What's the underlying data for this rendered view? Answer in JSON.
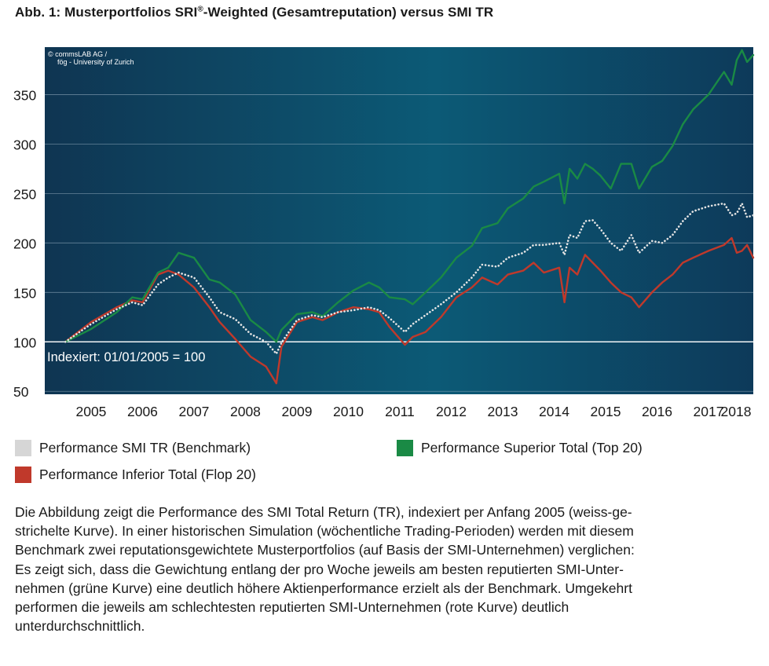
{
  "title": {
    "main": "Abb. 1: Musterportfolios SRI",
    "sup": "®",
    "rest": "-Weighted (Gesamtreputation) versus SMI TR"
  },
  "chart_data": {
    "type": "line",
    "title": "Abb. 1: Musterportfolios SRI®-Weighted (Gesamtreputation) versus SMI TR",
    "ylim": [
      47,
      398
    ],
    "y_ticks": [
      50,
      100,
      150,
      200,
      250,
      300,
      350
    ],
    "x_range": [
      2004.6,
      2018.37
    ],
    "x_ticks": [
      "2005",
      "2006",
      "2007",
      "2008",
      "2009",
      "2010",
      "2011",
      "2012",
      "2013",
      "2014",
      "2015",
      "2016",
      "2017",
      "2018"
    ],
    "grid": "horizontal",
    "source_note": [
      "© commsLAB AG /",
      "fög - University of Zurich"
    ],
    "annotation": "Indexiert: 01/01/2005 = 100",
    "legend_position": "bottom",
    "series": [
      {
        "name": "Performance SMI TR (Benchmark)",
        "color": "#e4e4e4",
        "style": "dotted",
        "x": [
          2005.0,
          2005.5,
          2006.0,
          2006.3,
          2006.5,
          2006.8,
          2007.0,
          2007.2,
          2007.5,
          2007.8,
          2008.0,
          2008.3,
          2008.6,
          2008.9,
          2009.1,
          2009.2,
          2009.5,
          2009.8,
          2010.0,
          2010.3,
          2010.6,
          2010.9,
          2011.1,
          2011.3,
          2011.6,
          2011.75,
          2012.0,
          2012.3,
          2012.6,
          2012.9,
          2013.1,
          2013.4,
          2013.6,
          2013.9,
          2014.1,
          2014.3,
          2014.6,
          2014.7,
          2014.8,
          2014.95,
          2015.1,
          2015.25,
          2015.4,
          2015.6,
          2015.8,
          2016.0,
          2016.15,
          2016.4,
          2016.6,
          2016.8,
          2017.0,
          2017.2,
          2017.5,
          2017.8,
          2017.95,
          2018.05,
          2018.15,
          2018.25,
          2018.37
        ],
        "y": [
          100,
          118,
          133,
          140,
          137,
          158,
          165,
          170,
          165,
          145,
          130,
          123,
          108,
          100,
          88,
          99,
          122,
          127,
          125,
          130,
          132,
          135,
          132,
          124,
          110,
          118,
          127,
          138,
          150,
          165,
          178,
          176,
          185,
          190,
          198,
          198,
          200,
          188,
          208,
          205,
          222,
          223,
          214,
          200,
          192,
          208,
          190,
          202,
          200,
          208,
          222,
          232,
          237,
          240,
          228,
          230,
          240,
          226,
          228
        ]
      },
      {
        "name": "Performance Superior Total (Top 20)",
        "color": "#1a8a45",
        "style": "solid",
        "x": [
          2005.0,
          2005.5,
          2006.0,
          2006.3,
          2006.5,
          2006.8,
          2007.0,
          2007.2,
          2007.5,
          2007.8,
          2008.0,
          2008.3,
          2008.6,
          2008.9,
          2009.1,
          2009.2,
          2009.5,
          2009.8,
          2010.0,
          2010.3,
          2010.6,
          2010.9,
          2011.1,
          2011.3,
          2011.6,
          2011.75,
          2012.0,
          2012.3,
          2012.6,
          2012.9,
          2013.1,
          2013.4,
          2013.6,
          2013.9,
          2014.1,
          2014.3,
          2014.6,
          2014.7,
          2014.8,
          2014.95,
          2015.1,
          2015.25,
          2015.4,
          2015.6,
          2015.8,
          2016.0,
          2016.15,
          2016.4,
          2016.6,
          2016.8,
          2017.0,
          2017.2,
          2017.5,
          2017.8,
          2017.95,
          2018.05,
          2018.15,
          2018.25,
          2018.37
        ],
        "y": [
          100,
          113,
          130,
          145,
          143,
          170,
          175,
          190,
          185,
          163,
          160,
          148,
          122,
          110,
          100,
          112,
          128,
          130,
          126,
          140,
          152,
          160,
          155,
          145,
          143,
          138,
          150,
          165,
          185,
          197,
          215,
          220,
          235,
          245,
          257,
          262,
          270,
          240,
          275,
          265,
          280,
          275,
          268,
          255,
          280,
          280,
          255,
          277,
          283,
          298,
          320,
          335,
          350,
          373,
          360,
          385,
          395,
          383,
          390
        ]
      },
      {
        "name": "Performance Inferior Total (Flop 20)",
        "color": "#c0392b",
        "style": "solid",
        "x": [
          2005.0,
          2005.5,
          2006.0,
          2006.3,
          2006.5,
          2006.8,
          2007.0,
          2007.2,
          2007.5,
          2007.8,
          2008.0,
          2008.3,
          2008.6,
          2008.9,
          2009.1,
          2009.2,
          2009.5,
          2009.8,
          2010.0,
          2010.3,
          2010.6,
          2010.9,
          2011.1,
          2011.3,
          2011.6,
          2011.75,
          2012.0,
          2012.3,
          2012.6,
          2012.9,
          2013.1,
          2013.4,
          2013.6,
          2013.9,
          2014.1,
          2014.3,
          2014.6,
          2014.7,
          2014.8,
          2014.95,
          2015.1,
          2015.25,
          2015.4,
          2015.6,
          2015.8,
          2016.0,
          2016.15,
          2016.4,
          2016.6,
          2016.8,
          2017.0,
          2017.2,
          2017.5,
          2017.8,
          2017.95,
          2018.05,
          2018.15,
          2018.25,
          2018.37
        ],
        "y": [
          100,
          120,
          135,
          142,
          140,
          168,
          172,
          168,
          155,
          135,
          120,
          103,
          85,
          75,
          58,
          95,
          120,
          125,
          122,
          130,
          135,
          133,
          130,
          115,
          97,
          105,
          110,
          125,
          145,
          155,
          165,
          158,
          168,
          172,
          180,
          170,
          175,
          140,
          175,
          168,
          188,
          180,
          172,
          160,
          150,
          145,
          135,
          150,
          160,
          168,
          180,
          185,
          192,
          198,
          205,
          190,
          192,
          198,
          185
        ]
      }
    ]
  },
  "legend": {
    "benchmark": "Performance SMI TR (Benchmark)",
    "superior": "Performance Superior Total (Top 20)",
    "inferior": "Performance Inferior Total (Flop 20)"
  },
  "caption": {
    "lines": [
      "Die Abbildung zeigt die Performance des SMI Total Return (TR), indexiert per Anfang 2005 (weiss-ge-",
      "strichelte Kurve). In einer historischen Simulation (wöchentliche Trading-Perioden) werden mit diesem",
      "Benchmark zwei reputationsgewichtete Musterportfolios (auf Basis der SMI-Unternehmen) verglichen:",
      "Es zeigt sich, dass die Gewichtung entlang der pro Woche jeweils am besten reputierten SMI-Unter-",
      "nehmen (grüne Kurve) eine deutlich höhere Aktienperformance erzielt als der Benchmark. Umgekehrt",
      "performen die jeweils am schlechtesten reputierten SMI-Unternehmen (rote Kurve) deutlich",
      "unterdurchschnittlich."
    ]
  }
}
